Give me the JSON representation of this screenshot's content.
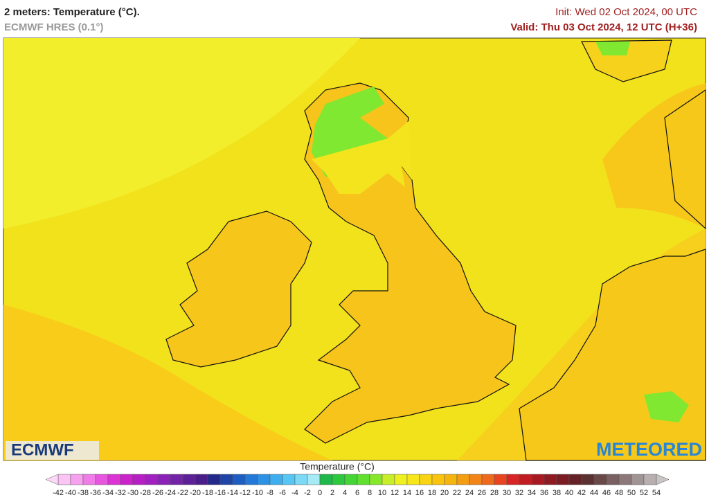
{
  "header": {
    "title": "2 meters: Temperature (°C).",
    "subtitle": "ECMWF HRES (0.1°)",
    "init": "Init: Wed 02 Oct 2024, 00 UTC",
    "valid": "Valid: Thu 03 Oct 2024, 12 UTC (H+36)"
  },
  "logos": {
    "left": "ECMWF",
    "right": "METEORED"
  },
  "colorbar": {
    "label": "Temperature (°C)",
    "ticks": [
      -42,
      -40,
      -38,
      -36,
      -34,
      -32,
      -30,
      -28,
      -26,
      -24,
      -22,
      -20,
      -18,
      -16,
      -14,
      -12,
      -10,
      -8,
      -6,
      -4,
      -2,
      0,
      2,
      4,
      6,
      8,
      10,
      12,
      14,
      16,
      18,
      20,
      22,
      24,
      26,
      28,
      30,
      32,
      34,
      36,
      38,
      40,
      42,
      44,
      46,
      48,
      50,
      52,
      54
    ],
    "colors": [
      "#fcc4f4",
      "#f7a0ef",
      "#f07ce8",
      "#e756df",
      "#dd33d6",
      "#cc22cc",
      "#b61fc4",
      "#a020c0",
      "#8a22b8",
      "#7323a8",
      "#5e2098",
      "#4b1d88",
      "#24288a",
      "#1e44a8",
      "#1d5ec4",
      "#2378d8",
      "#2d92e4",
      "#3eaeee",
      "#58c6f4",
      "#7cdaf6",
      "#a6eaf6",
      "#1fb84a",
      "#2cc83e",
      "#44d636",
      "#62e030",
      "#86e82c",
      "#c8ee2a",
      "#eef020",
      "#f6e61a",
      "#f8d414",
      "#f8c40e",
      "#f6b40e",
      "#f49c12",
      "#f28418",
      "#ee6a1c",
      "#e84420",
      "#d82424",
      "#c01c22",
      "#a81a22",
      "#901a22",
      "#7a1c22",
      "#642226",
      "#5a3030",
      "#6a4848",
      "#7a6060",
      "#8c7878",
      "#a09494",
      "#b8b0b0"
    ],
    "under": "#fcd8f8",
    "over": "#c8c4c4"
  }
}
